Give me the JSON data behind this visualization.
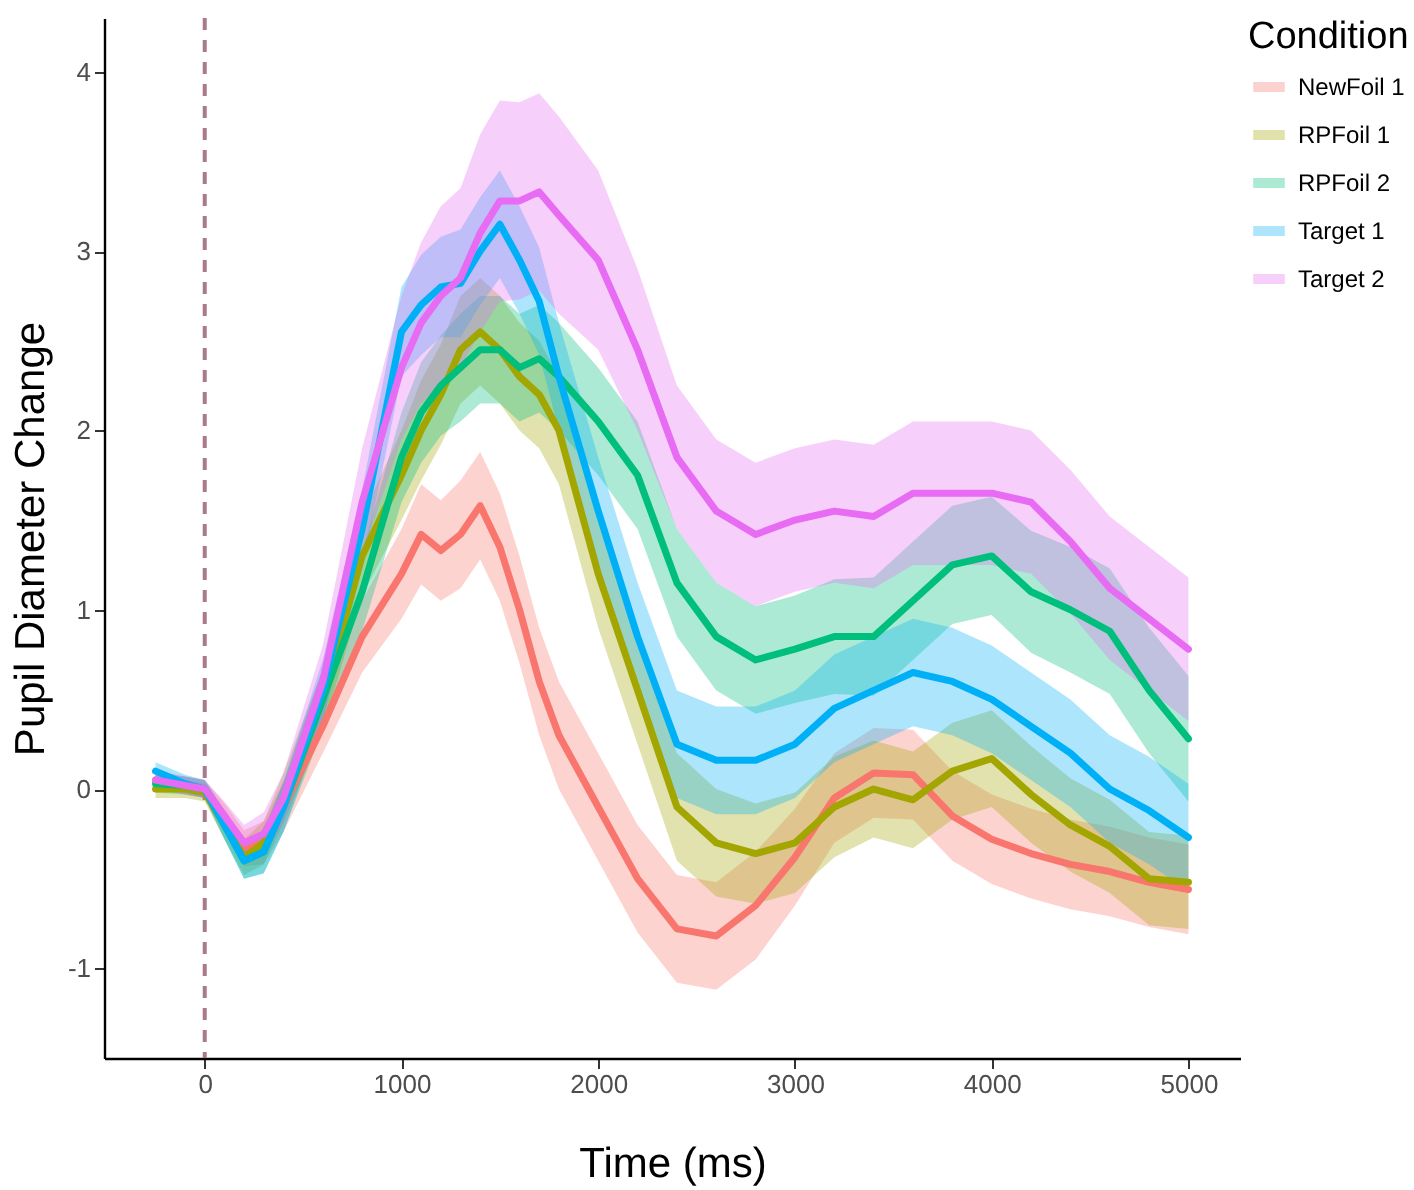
{
  "chart_data": {
    "type": "line",
    "xlabel": "Time (ms)",
    "ylabel": "Pupil Diameter Change",
    "legend_title": "Condition",
    "legend": "right",
    "grid": false,
    "xlim": [
      -512,
      5262
    ],
    "ylim": [
      -1.5,
      4.3
    ],
    "xticks": [
      0,
      1000,
      2000,
      3000,
      4000,
      5000
    ],
    "yticks": [
      -1,
      0,
      1,
      2,
      3,
      4
    ],
    "x": [
      -250,
      -100,
      0,
      100,
      200,
      300,
      400,
      600,
      800,
      1000,
      1100,
      1200,
      1300,
      1400,
      1500,
      1600,
      1700,
      1800,
      2000,
      2200,
      2400,
      2600,
      2800,
      3000,
      3200,
      3400,
      3600,
      3800,
      4000,
      4200,
      4400,
      4600,
      4800,
      5000
    ],
    "ref_lines": [
      {
        "axis": "x",
        "value": 0,
        "color": "#a87a8c",
        "line_style": "dashed"
      }
    ],
    "series": [
      {
        "name": "NewFoil 1",
        "color": "#f8766d",
        "values": [
          0.05,
          0.02,
          0.0,
          -0.15,
          -0.33,
          -0.3,
          -0.1,
          0.35,
          0.85,
          1.2,
          1.42,
          1.33,
          1.42,
          1.58,
          1.35,
          1.0,
          0.6,
          0.3,
          -0.1,
          -0.5,
          -0.78,
          -0.82,
          -0.65,
          -0.38,
          -0.05,
          0.09,
          0.08,
          -0.15,
          -0.28,
          -0.36,
          -0.42,
          -0.46,
          -0.52,
          -0.56
        ],
        "lower": [
          0.0,
          -0.03,
          -0.05,
          -0.22,
          -0.43,
          -0.42,
          -0.24,
          0.2,
          0.65,
          0.95,
          1.14,
          1.05,
          1.12,
          1.28,
          1.05,
          0.7,
          0.3,
          0.0,
          -0.4,
          -0.8,
          -1.08,
          -1.12,
          -0.95,
          -0.65,
          -0.3,
          -0.16,
          -0.17,
          -0.4,
          -0.53,
          -0.61,
          -0.67,
          -0.71,
          -0.77,
          -0.81
        ],
        "upper": [
          0.1,
          0.07,
          0.05,
          -0.08,
          -0.23,
          -0.18,
          0.04,
          0.5,
          1.05,
          1.45,
          1.7,
          1.61,
          1.72,
          1.88,
          1.65,
          1.3,
          0.9,
          0.6,
          0.2,
          -0.2,
          -0.48,
          -0.52,
          -0.35,
          -0.11,
          0.2,
          0.34,
          0.33,
          0.1,
          -0.03,
          -0.11,
          -0.17,
          -0.21,
          -0.27,
          -0.31
        ]
      },
      {
        "name": "RPFoil 1",
        "color": "#a3a500",
        "values": [
          0.0,
          0.0,
          -0.02,
          -0.2,
          -0.38,
          -0.3,
          -0.05,
          0.5,
          1.3,
          1.75,
          2.0,
          2.2,
          2.45,
          2.55,
          2.45,
          2.3,
          2.2,
          2.0,
          1.2,
          0.55,
          -0.1,
          -0.3,
          -0.36,
          -0.3,
          -0.1,
          0.0,
          -0.06,
          0.1,
          0.17,
          -0.03,
          -0.2,
          -0.32,
          -0.5,
          -0.52
        ],
        "lower": [
          -0.05,
          -0.05,
          -0.07,
          -0.28,
          -0.48,
          -0.42,
          -0.19,
          0.33,
          1.08,
          1.5,
          1.72,
          1.92,
          2.15,
          2.25,
          2.15,
          2.0,
          1.9,
          1.7,
          0.9,
          0.25,
          -0.4,
          -0.6,
          -0.64,
          -0.58,
          -0.38,
          -0.27,
          -0.33,
          -0.17,
          -0.1,
          -0.3,
          -0.46,
          -0.58,
          -0.76,
          -0.78
        ],
        "upper": [
          0.05,
          0.05,
          0.03,
          -0.12,
          -0.28,
          -0.18,
          0.09,
          0.67,
          1.52,
          2.0,
          2.28,
          2.48,
          2.75,
          2.85,
          2.75,
          2.6,
          2.5,
          2.3,
          1.5,
          0.85,
          0.2,
          0.0,
          -0.08,
          -0.02,
          0.18,
          0.27,
          0.21,
          0.37,
          0.44,
          0.24,
          0.06,
          -0.06,
          -0.24,
          -0.26
        ]
      },
      {
        "name": "RPFoil 2",
        "color": "#00bf7d",
        "values": [
          0.03,
          0.02,
          0.0,
          -0.2,
          -0.4,
          -0.35,
          -0.1,
          0.5,
          1.1,
          1.85,
          2.1,
          2.25,
          2.35,
          2.45,
          2.45,
          2.35,
          2.4,
          2.3,
          2.05,
          1.75,
          1.15,
          0.85,
          0.72,
          0.78,
          0.85,
          0.85,
          1.05,
          1.25,
          1.3,
          1.1,
          1.0,
          0.88,
          0.55,
          0.28
        ],
        "lower": [
          -0.02,
          -0.03,
          -0.05,
          -0.28,
          -0.5,
          -0.47,
          -0.24,
          0.33,
          0.88,
          1.6,
          1.82,
          1.97,
          2.05,
          2.15,
          2.15,
          2.05,
          2.1,
          2.0,
          1.75,
          1.45,
          0.85,
          0.55,
          0.42,
          0.48,
          0.53,
          0.52,
          0.72,
          0.92,
          0.97,
          0.76,
          0.65,
          0.53,
          0.2,
          -0.07
        ],
        "upper": [
          0.08,
          0.07,
          0.05,
          -0.12,
          -0.3,
          -0.23,
          0.04,
          0.67,
          1.32,
          2.1,
          2.38,
          2.53,
          2.65,
          2.75,
          2.75,
          2.65,
          2.7,
          2.6,
          2.35,
          2.05,
          1.45,
          1.15,
          1.02,
          1.08,
          1.17,
          1.18,
          1.38,
          1.58,
          1.63,
          1.44,
          1.35,
          1.23,
          0.9,
          0.63
        ]
      },
      {
        "name": "Target 1",
        "color": "#00b0f6",
        "values": [
          0.1,
          0.03,
          0.0,
          -0.2,
          -0.4,
          -0.35,
          -0.1,
          0.55,
          1.45,
          2.55,
          2.7,
          2.8,
          2.82,
          3.0,
          3.15,
          2.95,
          2.72,
          2.3,
          1.55,
          0.85,
          0.25,
          0.16,
          0.16,
          0.25,
          0.45,
          0.55,
          0.65,
          0.6,
          0.5,
          0.35,
          0.2,
          0.0,
          -0.12,
          -0.27
        ],
        "lower": [
          0.05,
          -0.02,
          -0.05,
          -0.28,
          -0.5,
          -0.47,
          -0.24,
          0.38,
          1.23,
          2.3,
          2.42,
          2.52,
          2.52,
          2.7,
          2.85,
          2.65,
          2.42,
          2.0,
          1.25,
          0.55,
          -0.05,
          -0.14,
          -0.14,
          -0.05,
          0.15,
          0.25,
          0.35,
          0.3,
          0.2,
          0.05,
          -0.1,
          -0.3,
          -0.42,
          -0.57
        ],
        "upper": [
          0.15,
          0.08,
          0.05,
          -0.12,
          -0.3,
          -0.23,
          0.04,
          0.72,
          1.67,
          2.8,
          2.98,
          3.08,
          3.12,
          3.3,
          3.45,
          3.25,
          3.02,
          2.6,
          1.85,
          1.15,
          0.55,
          0.46,
          0.46,
          0.55,
          0.75,
          0.85,
          0.95,
          0.9,
          0.8,
          0.65,
          0.5,
          0.3,
          0.18,
          0.03
        ]
      },
      {
        "name": "Target 2",
        "color": "#e76bf3",
        "values": [
          0.05,
          0.02,
          0.0,
          -0.15,
          -0.3,
          -0.25,
          -0.05,
          0.6,
          1.6,
          2.35,
          2.6,
          2.75,
          2.85,
          3.1,
          3.28,
          3.28,
          3.33,
          3.2,
          2.95,
          2.45,
          1.85,
          1.55,
          1.42,
          1.5,
          1.55,
          1.52,
          1.65,
          1.65,
          1.65,
          1.6,
          1.38,
          1.12,
          0.95,
          0.78
        ],
        "lower": [
          0.0,
          -0.03,
          -0.05,
          -0.23,
          -0.4,
          -0.37,
          -0.19,
          0.4,
          1.3,
          1.95,
          2.15,
          2.25,
          2.35,
          2.55,
          2.72,
          2.73,
          2.78,
          2.65,
          2.45,
          2.0,
          1.45,
          1.15,
          1.02,
          1.1,
          1.15,
          1.12,
          1.25,
          1.25,
          1.25,
          1.2,
          0.98,
          0.72,
          0.55,
          0.38
        ],
        "upper": [
          0.1,
          0.07,
          0.05,
          -0.07,
          -0.2,
          -0.13,
          0.09,
          0.8,
          1.9,
          2.75,
          3.05,
          3.25,
          3.35,
          3.65,
          3.84,
          3.83,
          3.88,
          3.75,
          3.45,
          2.9,
          2.25,
          1.95,
          1.82,
          1.9,
          1.95,
          1.92,
          2.05,
          2.05,
          2.05,
          2.0,
          1.78,
          1.52,
          1.35,
          1.18
        ]
      }
    ]
  }
}
